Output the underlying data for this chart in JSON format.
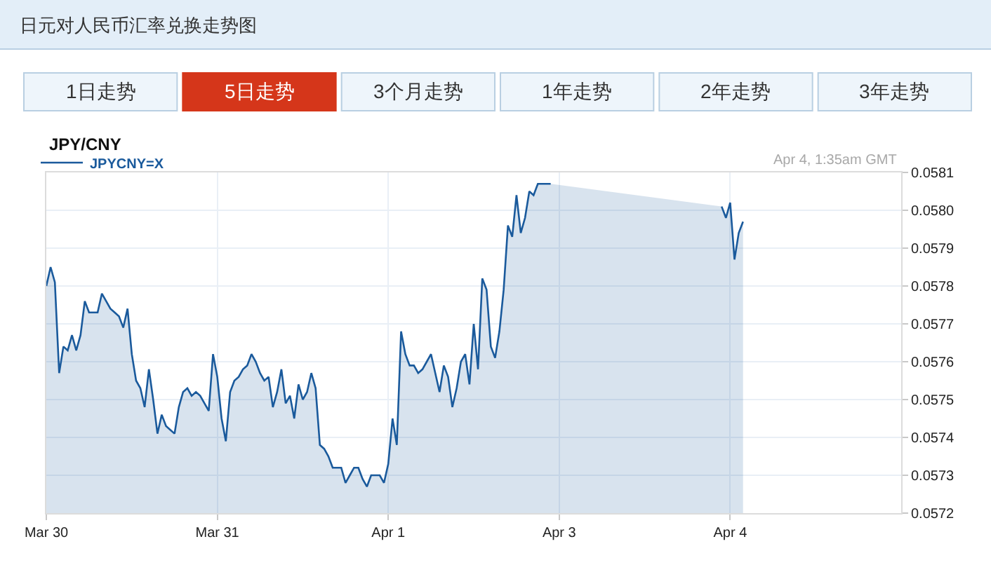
{
  "chart_data": {
    "type": "area",
    "title": "日元对人民币汇率兑换走势图",
    "subtitle": "JPY/CNY",
    "annotations": [
      "Apr 4, 1:35am GMT",
      "1日走势",
      "5日走势",
      "3个月走势",
      "1年走势",
      "2年走势",
      "3年走势"
    ],
    "categories": [
      "Mar 30",
      null,
      null,
      null,
      null,
      null,
      null,
      null,
      null,
      null,
      null,
      null,
      null,
      null,
      null,
      null,
      null,
      null,
      null,
      null,
      null,
      null,
      null,
      null,
      null,
      null,
      null,
      null,
      null,
      null,
      null,
      null,
      null,
      null,
      null,
      null,
      null,
      null,
      null,
      null,
      "Mar 31",
      null,
      null,
      null,
      null,
      null,
      null,
      null,
      null,
      null,
      null,
      null,
      null,
      null,
      null,
      null,
      null,
      null,
      null,
      null,
      null,
      null,
      null,
      null,
      null,
      null,
      null,
      null,
      null,
      null,
      null,
      null,
      null,
      null,
      null,
      null,
      null,
      null,
      null,
      null,
      "Apr 1",
      null,
      null,
      null,
      null,
      null,
      null,
      null,
      null,
      null,
      null,
      null,
      null,
      null,
      null,
      null,
      null,
      null,
      null,
      null,
      null,
      null,
      null,
      null,
      null,
      null,
      null,
      null,
      null,
      null,
      null,
      null,
      null,
      null,
      null,
      null,
      null,
      null,
      null,
      null,
      "Apr 3",
      null,
      null,
      null,
      null,
      null,
      null,
      null,
      null,
      null,
      null,
      null,
      null,
      null,
      null,
      null,
      null,
      null,
      null,
      null,
      null,
      null,
      null,
      null,
      null,
      null,
      null,
      null,
      null,
      null,
      null,
      null,
      null,
      null,
      null,
      null,
      null,
      null,
      null,
      null,
      "Apr 4",
      null,
      null,
      null,
      null,
      null,
      null,
      null,
      null,
      null,
      null,
      null,
      null,
      null,
      null,
      null,
      null,
      null,
      null,
      null,
      null,
      null,
      null,
      null,
      null,
      null,
      null,
      null,
      null,
      null,
      null,
      null,
      null,
      null,
      null,
      null,
      null,
      null,
      null,
      null,
      null
    ],
    "series": [
      {
        "name": "JPYCNY=X",
        "color": "#1a5a9c",
        "values": [
          0.0578,
          0.05785,
          0.05781,
          0.05757,
          0.05764,
          0.05763,
          0.05767,
          0.05763,
          0.05767,
          0.05776,
          0.05773,
          0.05773,
          0.05773,
          0.05778,
          0.05776,
          0.05774,
          0.05773,
          0.05772,
          0.05769,
          0.05774,
          0.05762,
          0.05755,
          0.05753,
          0.05748,
          0.05758,
          0.0575,
          0.05741,
          0.05746,
          0.05743,
          0.05742,
          0.05741,
          0.05748,
          0.05752,
          0.05753,
          0.05751,
          0.05752,
          0.05751,
          0.05749,
          0.05747,
          0.05762,
          0.05756,
          0.05745,
          0.05739,
          0.05752,
          0.05755,
          0.05756,
          0.05758,
          0.05759,
          0.05762,
          0.0576,
          0.05757,
          0.05755,
          0.05756,
          0.05748,
          0.05752,
          0.05758,
          0.05749,
          0.05751,
          0.05745,
          0.05754,
          0.0575,
          0.05752,
          0.05757,
          0.05753,
          0.05738,
          0.05737,
          0.05735,
          0.05732,
          0.05732,
          0.05732,
          0.05728,
          0.0573,
          0.05732,
          0.05732,
          0.05729,
          0.05727,
          0.0573,
          0.0573,
          0.0573,
          0.05728,
          0.05733,
          0.05745,
          0.05738,
          0.05768,
          0.05762,
          0.05759,
          0.05759,
          0.05757,
          0.05758,
          0.0576,
          0.05762,
          0.05757,
          0.05752,
          0.05759,
          0.05756,
          0.05748,
          0.05753,
          0.0576,
          0.05762,
          0.05754,
          0.0577,
          0.05758,
          0.05782,
          0.05779,
          0.05764,
          0.05761,
          0.05768,
          0.05779,
          0.05796,
          0.05793,
          0.05804,
          0.05794,
          0.05798,
          0.05805,
          0.05804,
          0.05807,
          0.05807,
          0.05807,
          0.05807,
          null,
          null,
          null,
          null,
          null,
          null,
          null,
          null,
          null,
          null,
          null,
          null,
          null,
          null,
          null,
          null,
          null,
          null,
          null,
          null,
          null,
          null,
          null,
          null,
          null,
          null,
          null,
          null,
          null,
          null,
          null,
          null,
          null,
          null,
          null,
          null,
          null,
          null,
          null,
          0.05801,
          0.05798,
          0.05802,
          0.05787,
          0.05794,
          0.05797,
          null,
          null,
          null,
          null,
          null,
          null,
          null,
          null,
          null,
          null,
          null,
          null,
          null,
          null,
          null,
          null,
          null,
          null,
          null,
          null,
          null,
          null,
          null,
          null,
          null,
          null,
          null,
          null,
          null,
          null,
          null,
          null,
          null,
          null,
          null,
          null,
          null
        ]
      }
    ],
    "ylim": [
      0.0572,
      0.0581
    ],
    "yticks": [
      0.0572,
      0.0573,
      0.0574,
      0.0575,
      0.0576,
      0.0577,
      0.0578,
      0.0579,
      {
        "value": 0.058,
        "label": "0.0580"
      },
      0.0581
    ],
    "grid": true,
    "legend": "top left"
  }
}
